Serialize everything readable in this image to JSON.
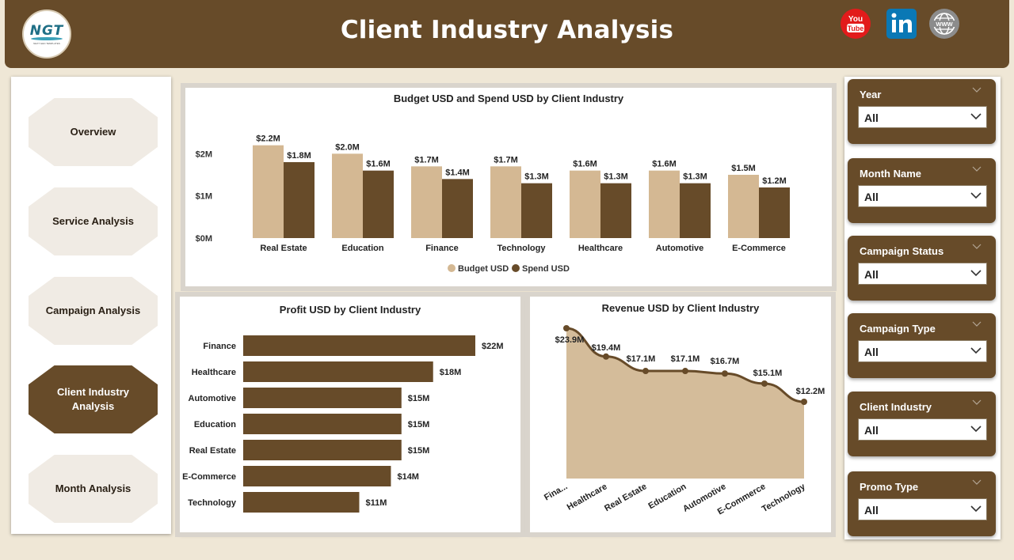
{
  "header": {
    "title": "Client Industry Analysis",
    "logo_text": "NGT",
    "logo_subtext": "NEXT GEN TEMPLATES"
  },
  "social_icons": [
    "youtube-icon",
    "linkedin-icon",
    "globe-icon"
  ],
  "nav": {
    "items": [
      {
        "label": "Overview",
        "active": false
      },
      {
        "label": "Service Analysis",
        "active": false
      },
      {
        "label": "Campaign Analysis",
        "active": false
      },
      {
        "label": "Client Industry Analysis",
        "active": true
      },
      {
        "label": "Month Analysis",
        "active": false
      }
    ]
  },
  "filters": [
    {
      "label": "Year",
      "value": "All"
    },
    {
      "label": "Month Name",
      "value": "All"
    },
    {
      "label": "Campaign Status",
      "value": "All"
    },
    {
      "label": "Campaign Type",
      "value": "All"
    },
    {
      "label": "Client Industry",
      "value": "All"
    },
    {
      "label": "Promo Type",
      "value": "All"
    }
  ],
  "colors": {
    "brand_brown": "#674b29",
    "budget_tan": "#d4b893",
    "area_fill": "#d4bc9a",
    "background": "#efe7d6"
  },
  "chart_data": [
    {
      "type": "bar",
      "title": "Budget USD and Spend USD by Client Industry",
      "categories": [
        "Real Estate",
        "Education",
        "Finance",
        "Technology",
        "Healthcare",
        "Automotive",
        "E-Commerce"
      ],
      "series": [
        {
          "name": "Budget USD",
          "values": [
            2.2,
            2.0,
            1.7,
            1.7,
            1.6,
            1.6,
            1.5
          ],
          "labels": [
            "$2.2M",
            "$2.0M",
            "$1.7M",
            "$1.7M",
            "$1.6M",
            "$1.6M",
            "$1.5M"
          ]
        },
        {
          "name": "Spend USD",
          "values": [
            1.8,
            1.6,
            1.4,
            1.3,
            1.3,
            1.3,
            1.2
          ],
          "labels": [
            "$1.8M",
            "$1.6M",
            "$1.4M",
            "$1.3M",
            "$1.3M",
            "$1.3M",
            "$1.2M"
          ]
        }
      ],
      "yticks": [
        "$0M",
        "$1M",
        "$2M"
      ],
      "ylim": [
        0,
        2.4
      ],
      "legend": "bottom-center"
    },
    {
      "type": "bar",
      "orientation": "horizontal",
      "title": "Profit USD by Client Industry",
      "categories": [
        "Finance",
        "Healthcare",
        "Automotive",
        "Education",
        "Real Estate",
        "E-Commerce",
        "Technology"
      ],
      "values": [
        22,
        18,
        15,
        15,
        15,
        14,
        11
      ],
      "labels": [
        "$22M",
        "$18M",
        "$15M",
        "$15M",
        "$15M",
        "$14M",
        "$11M"
      ],
      "xlim": [
        0,
        22
      ]
    },
    {
      "type": "area",
      "title": "Revenue USD by Client Industry",
      "categories": [
        "Fina...",
        "Healthcare",
        "Real Estate",
        "Education",
        "Automotive",
        "E-Commerce",
        "Technology"
      ],
      "values": [
        23.9,
        19.4,
        17.1,
        17.1,
        16.7,
        15.1,
        12.2
      ],
      "labels": [
        "$23.9M",
        "$19.4M",
        "$17.1M",
        "$17.1M",
        "$16.7M",
        "$15.1M",
        "$12.2M"
      ],
      "ylim": [
        0,
        23.9
      ]
    }
  ]
}
